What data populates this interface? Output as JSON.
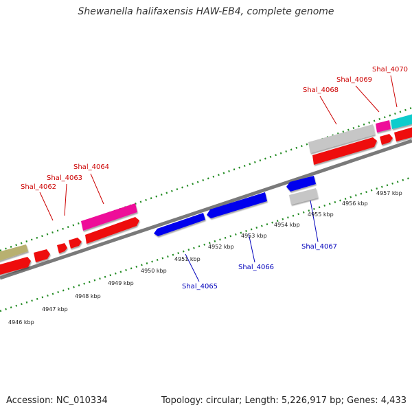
{
  "title": "Shewanella halifaxensis HAW-EB4, complete genome",
  "footer": {
    "accession": "Accession: NC_010334",
    "topology": "Topology: circular; Length: 5,226,917 bp; Genes: 4,433"
  },
  "colors": {
    "backbone": "#808080",
    "tick": "#228b22",
    "forward_label": "#cc0000",
    "reverse_label": "#0000bb",
    "forward_cds": "#ff0000",
    "reverse_cds": "#0000ee",
    "rna_or_other": "#c0c0c0",
    "pink": "#ee1199",
    "olive": "#b8b070",
    "cyan": "#11cccc"
  },
  "gene_labels": {
    "forward": [
      "Shal_4062",
      "Shal_4063",
      "Shal_4064",
      "Shal_4068",
      "Shal_4069",
      "Shal_4070"
    ],
    "reverse": [
      "Shal_4065",
      "Shal_4066",
      "Shal_4067"
    ]
  },
  "kbp_labels": [
    "4946 kbp",
    "4947 kbp",
    "4948 kbp",
    "4949 kbp",
    "4950 kbp",
    "4951 kbp",
    "4952 kbp",
    "4953 kbp",
    "4954 kbp",
    "4955 kbp",
    "4956 kbp",
    "4957 kbp"
  ]
}
